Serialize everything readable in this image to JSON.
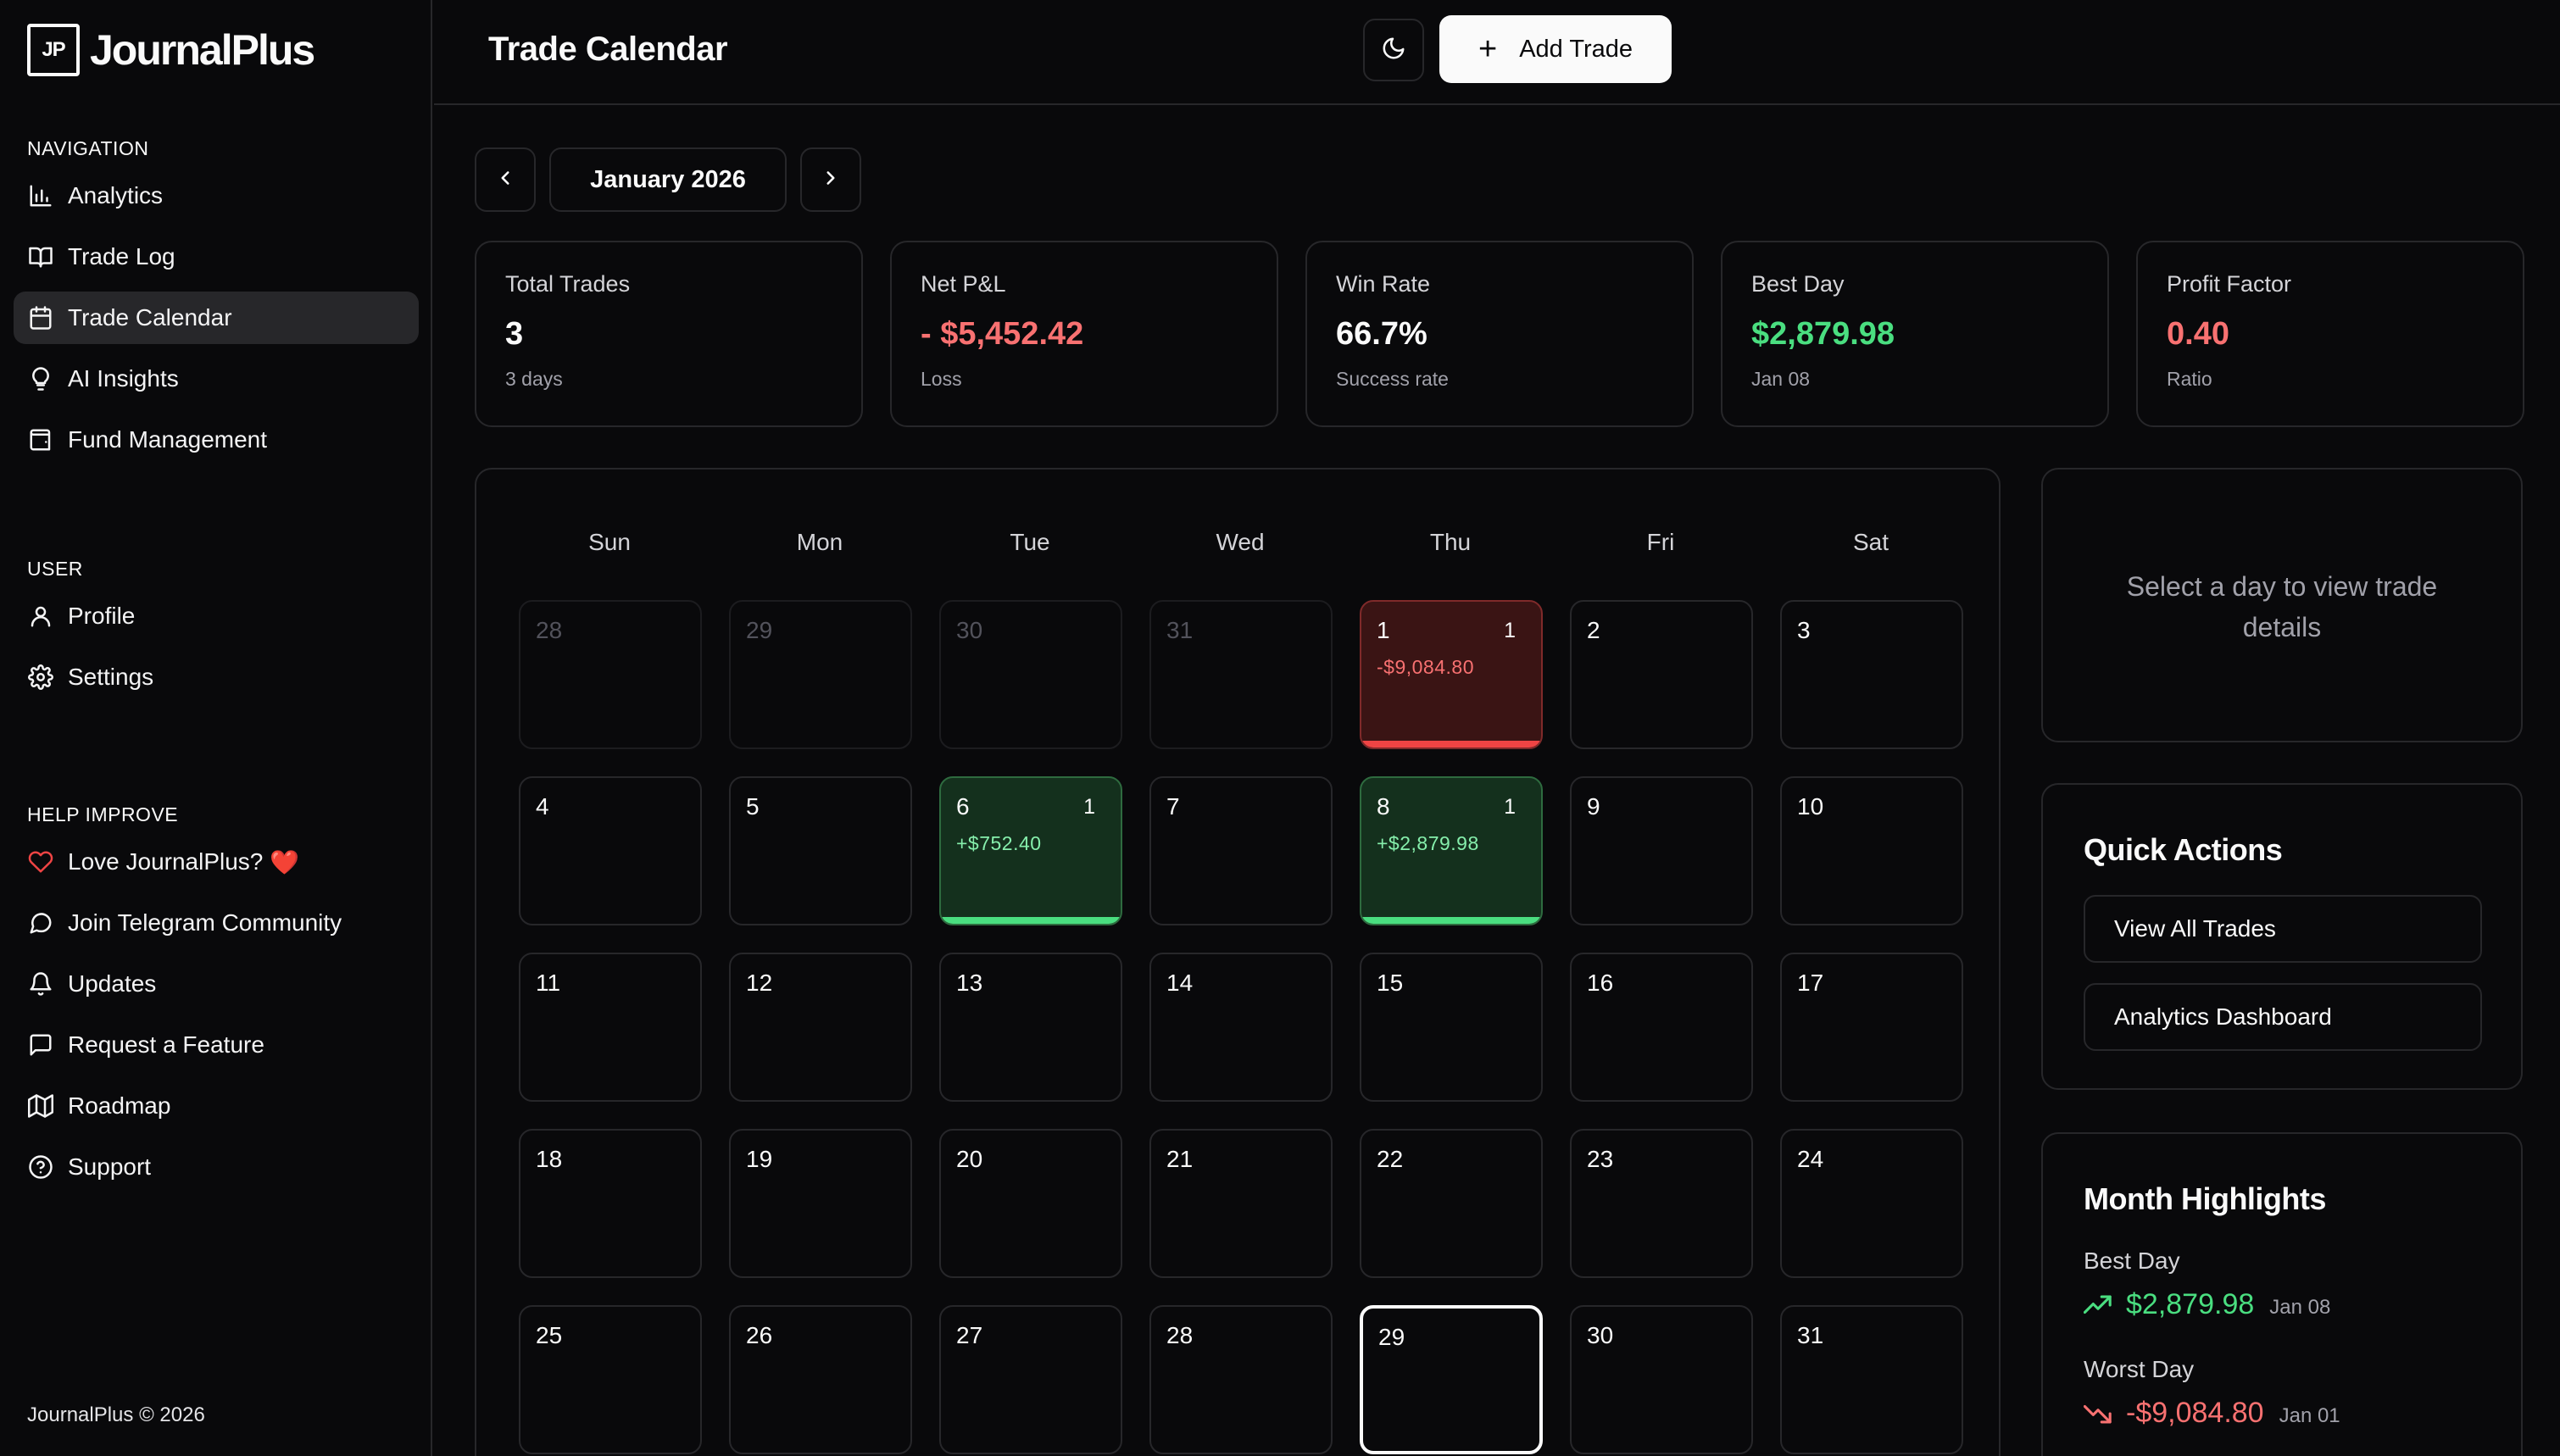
{
  "brand": {
    "mark": "JP",
    "name": "JournalPlus"
  },
  "sidebar": {
    "sections": [
      {
        "heading": "NAVIGATION",
        "items": [
          {
            "label": "Analytics",
            "icon": "bar-chart-icon"
          },
          {
            "label": "Trade Log",
            "icon": "book-open-icon"
          },
          {
            "label": "Trade Calendar",
            "icon": "calendar-icon",
            "active": true
          },
          {
            "label": "AI Insights",
            "icon": "lightbulb-icon"
          },
          {
            "label": "Fund Management",
            "icon": "wallet-icon"
          }
        ]
      },
      {
        "heading": "USER",
        "items": [
          {
            "label": "Profile",
            "icon": "user-icon"
          },
          {
            "label": "Settings",
            "icon": "gear-icon"
          }
        ]
      },
      {
        "heading": "HELP IMPROVE",
        "items": [
          {
            "label": "Love JournalPlus?",
            "icon": "heart-icon",
            "emoji": "❤️"
          },
          {
            "label": "Join Telegram Community",
            "icon": "chat-bubble-icon"
          },
          {
            "label": "Updates",
            "icon": "bell-icon"
          },
          {
            "label": "Request a Feature",
            "icon": "message-square-icon"
          },
          {
            "label": "Roadmap",
            "icon": "map-icon"
          },
          {
            "label": "Support",
            "icon": "help-circle-icon"
          }
        ]
      }
    ],
    "footer": "JournalPlus © 2026"
  },
  "header": {
    "title": "Trade Calendar",
    "add_trade_label": "Add Trade",
    "theme_icon": "moon-icon"
  },
  "month_nav": {
    "label": "January 2026",
    "prev_icon": "chevron-left-icon",
    "next_icon": "chevron-right-icon"
  },
  "stats": [
    {
      "label": "Total Trades",
      "value": "3",
      "sub": "3 days",
      "tone": "neutral"
    },
    {
      "label": "Net P&L",
      "value": "- $5,452.42",
      "sub": "Loss",
      "tone": "neg"
    },
    {
      "label": "Win Rate",
      "value": "66.7%",
      "sub": "Success rate",
      "tone": "neutral"
    },
    {
      "label": "Best Day",
      "value": "$2,879.98",
      "sub": "Jan 08",
      "tone": "pos"
    },
    {
      "label": "Profit Factor",
      "value": "0.40",
      "sub": "Ratio",
      "tone": "neg"
    }
  ],
  "calendar": {
    "weekdays": [
      "Sun",
      "Mon",
      "Tue",
      "Wed",
      "Thu",
      "Fri",
      "Sat"
    ],
    "days": [
      {
        "n": "28",
        "muted": true
      },
      {
        "n": "29",
        "muted": true
      },
      {
        "n": "30",
        "muted": true
      },
      {
        "n": "31",
        "muted": true
      },
      {
        "n": "1",
        "count": "1",
        "pnl": "-$9,084.80",
        "type": "loss"
      },
      {
        "n": "2"
      },
      {
        "n": "3"
      },
      {
        "n": "4"
      },
      {
        "n": "5"
      },
      {
        "n": "6",
        "count": "1",
        "pnl": "+$752.40",
        "type": "win"
      },
      {
        "n": "7"
      },
      {
        "n": "8",
        "count": "1",
        "pnl": "+$2,879.98",
        "type": "win"
      },
      {
        "n": "9"
      },
      {
        "n": "10"
      },
      {
        "n": "11"
      },
      {
        "n": "12"
      },
      {
        "n": "13"
      },
      {
        "n": "14"
      },
      {
        "n": "15"
      },
      {
        "n": "16"
      },
      {
        "n": "17"
      },
      {
        "n": "18"
      },
      {
        "n": "19"
      },
      {
        "n": "20"
      },
      {
        "n": "21"
      },
      {
        "n": "22"
      },
      {
        "n": "23"
      },
      {
        "n": "24"
      },
      {
        "n": "25"
      },
      {
        "n": "26"
      },
      {
        "n": "27"
      },
      {
        "n": "28"
      },
      {
        "n": "29",
        "today": true
      },
      {
        "n": "30"
      },
      {
        "n": "31"
      }
    ]
  },
  "details": {
    "message": "Select a day to view trade details"
  },
  "quick_actions": {
    "title": "Quick Actions",
    "buttons": [
      "View All Trades",
      "Analytics Dashboard"
    ]
  },
  "highlights": {
    "title": "Month Highlights",
    "best": {
      "label": "Best Day",
      "amount": "$2,879.98",
      "date": "Jan 08",
      "icon": "trending-up-icon"
    },
    "worst": {
      "label": "Worst Day",
      "amount": "-$9,084.80",
      "date": "Jan 01",
      "icon": "trending-down-icon"
    }
  },
  "colors": {
    "background": "#09090b",
    "border": "#27272a",
    "profit": "#4ade80",
    "loss": "#f87171"
  }
}
